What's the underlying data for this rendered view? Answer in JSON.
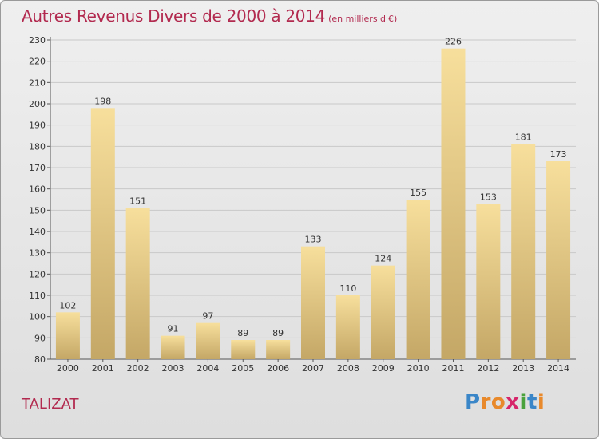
{
  "header": {
    "title": "Autres Revenus Divers de 2000 à 2014",
    "subtitle": "(en milliers d'€)"
  },
  "footer": {
    "town": "TALIZAT"
  },
  "logo": {
    "letters": [
      "P",
      "r",
      "o",
      "x",
      "i",
      "t",
      "i"
    ],
    "colors": [
      "#3a86c8",
      "#e8892b",
      "#e8892b",
      "#d6256a",
      "#4aa23c",
      "#3a86c8",
      "#e8892b"
    ]
  },
  "chart_data": {
    "type": "bar",
    "title": "Autres Revenus Divers de 2000 à 2014",
    "subtitle": "(en milliers d'€)",
    "xlabel": "",
    "ylabel": "",
    "categories": [
      "2000",
      "2001",
      "2002",
      "2003",
      "2004",
      "2005",
      "2006",
      "2007",
      "2008",
      "2009",
      "2010",
      "2011",
      "2012",
      "2013",
      "2014"
    ],
    "values": [
      102,
      198,
      151,
      91,
      97,
      89,
      89,
      133,
      110,
      124,
      155,
      226,
      153,
      181,
      173
    ],
    "ylim": [
      80,
      230
    ],
    "yticks": [
      80,
      90,
      100,
      110,
      120,
      130,
      140,
      150,
      160,
      170,
      180,
      190,
      200,
      210,
      220,
      230
    ],
    "grid": true,
    "colors": {
      "bar_light": "#f7df9c",
      "bar_dark": "#c4a766",
      "text": "#333333",
      "title": "#b22a4f"
    }
  }
}
